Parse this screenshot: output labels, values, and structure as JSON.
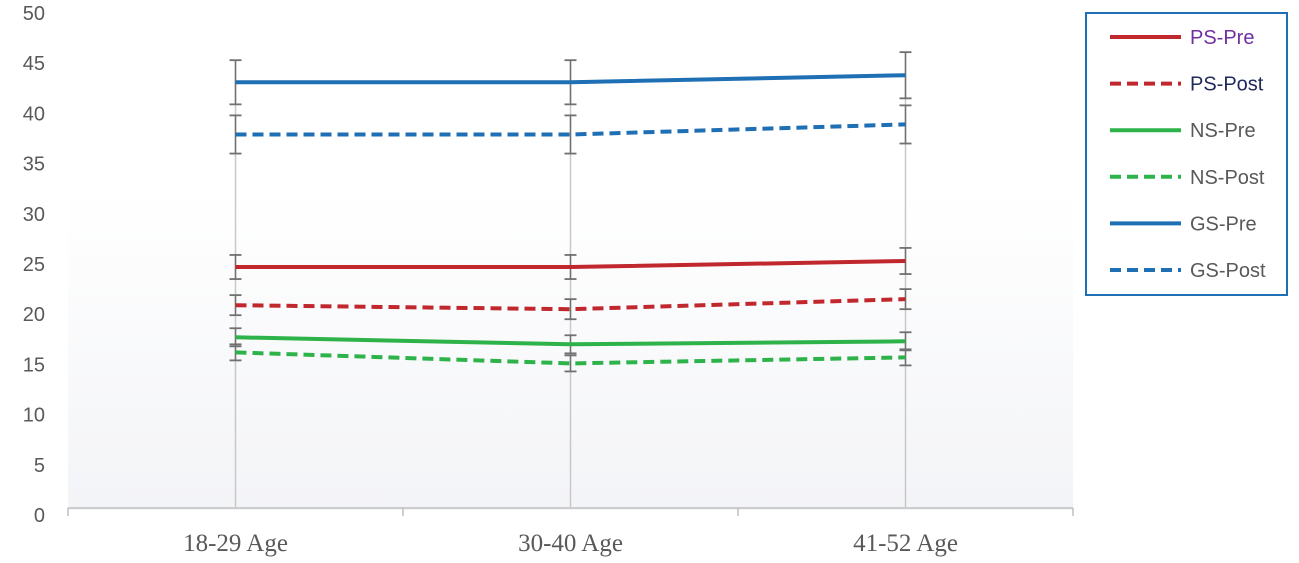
{
  "chart_data": {
    "type": "line",
    "title": "",
    "xlabel": "",
    "ylabel": "",
    "categories": [
      "18-29 Age",
      "30-40 Age",
      "41-52 Age"
    ],
    "ylim": [
      0,
      50
    ],
    "yticks": [
      0,
      5,
      10,
      15,
      20,
      25,
      30,
      35,
      40,
      45,
      50
    ],
    "grid": false,
    "legend_position": "right",
    "series": [
      {
        "name": "PS-Pre",
        "values": [
          24.7,
          24.7,
          25.3
        ],
        "error": [
          1.2,
          1.2,
          1.3
        ],
        "color": "#c0282d",
        "dash": "solid",
        "label_color": "#7030a0"
      },
      {
        "name": "PS-Post",
        "values": [
          20.9,
          20.5,
          21.5
        ],
        "error": [
          1.0,
          1.0,
          1.0
        ],
        "color": "#c0282d",
        "dash": "dashed",
        "label_color": "#1f2a5a"
      },
      {
        "name": "NS-Pre",
        "values": [
          17.7,
          17.0,
          17.3
        ],
        "error": [
          0.9,
          0.9,
          0.9
        ],
        "color": "#2db34a",
        "dash": "solid",
        "label_color": "#595959"
      },
      {
        "name": "NS-Post",
        "values": [
          16.2,
          15.1,
          15.7
        ],
        "error": [
          0.8,
          0.8,
          0.8
        ],
        "color": "#2db34a",
        "dash": "dashed",
        "label_color": "#595959"
      },
      {
        "name": "GS-Pre",
        "values": [
          43.1,
          43.1,
          43.8
        ],
        "error": [
          2.2,
          2.2,
          2.3
        ],
        "color": "#1f6fb5",
        "dash": "solid",
        "label_color": "#595959"
      },
      {
        "name": "GS-Post",
        "values": [
          37.9,
          37.9,
          38.9
        ],
        "error": [
          1.9,
          1.9,
          1.9
        ],
        "color": "#1f6fb5",
        "dash": "dashed",
        "label_color": "#595959"
      }
    ]
  }
}
